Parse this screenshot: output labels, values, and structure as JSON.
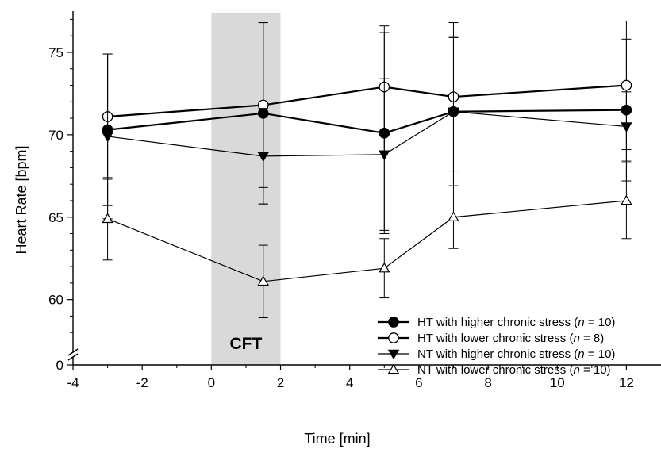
{
  "chart_data": {
    "type": "line",
    "xlabel": "Time [min]",
    "ylabel": "Heart Rate [bpm]",
    "xlim": [
      -4,
      13
    ],
    "xticks": [
      -4,
      -2,
      0,
      2,
      4,
      6,
      8,
      10,
      12
    ],
    "ylim": [
      57,
      77.5
    ],
    "yticks": [
      60,
      65,
      70,
      75
    ],
    "y_axis_break": true,
    "y_baseline_label": "0",
    "grid": false,
    "legend_position": "bottom-right",
    "shaded_region": {
      "x_start": 0,
      "x_end": 2,
      "label": "CFT",
      "color": "#d9d9d9"
    },
    "series": [
      {
        "name_parts": [
          "HT with higher chronic stress (",
          "n",
          " = 10)"
        ],
        "marker": "circle",
        "filled": true,
        "line_width": 2.2,
        "x": [
          -3,
          1.5,
          5,
          7,
          12
        ],
        "y": [
          70.3,
          71.3,
          70.1,
          71.4,
          71.5
        ],
        "err": [
          4.6,
          5.5,
          6.1,
          4.5,
          4.3
        ]
      },
      {
        "name_parts": [
          "HT with lower chronic stress (",
          "n",
          " = 8)"
        ],
        "marker": "circle",
        "filled": false,
        "line_width": 2.2,
        "x": [
          -3,
          1.5,
          5,
          7,
          12
        ],
        "y": [
          71.1,
          71.8,
          72.9,
          72.3,
          73.0
        ],
        "err": [
          3.8,
          5.0,
          3.7,
          4.5,
          3.9
        ]
      },
      {
        "name_parts": [
          "NT with higher chronic stress (",
          "n",
          " = 10)"
        ],
        "marker": "triangle-down",
        "filled": true,
        "line_width": 1.2,
        "x": [
          -3,
          1.5,
          5,
          7,
          12
        ],
        "y": [
          69.9,
          68.7,
          68.8,
          71.4,
          70.5
        ],
        "err": [
          5.0,
          2.9,
          4.6,
          4.5,
          2.1
        ]
      },
      {
        "name_parts": [
          "NT with lower chronic stress (",
          "n",
          " = 10)"
        ],
        "marker": "triangle-up",
        "filled": false,
        "line_width": 1.2,
        "x": [
          -3,
          1.5,
          5,
          7,
          12
        ],
        "y": [
          64.9,
          61.1,
          61.9,
          65.0,
          66.0
        ],
        "err": [
          2.5,
          2.2,
          1.8,
          1.9,
          2.3
        ]
      }
    ]
  }
}
